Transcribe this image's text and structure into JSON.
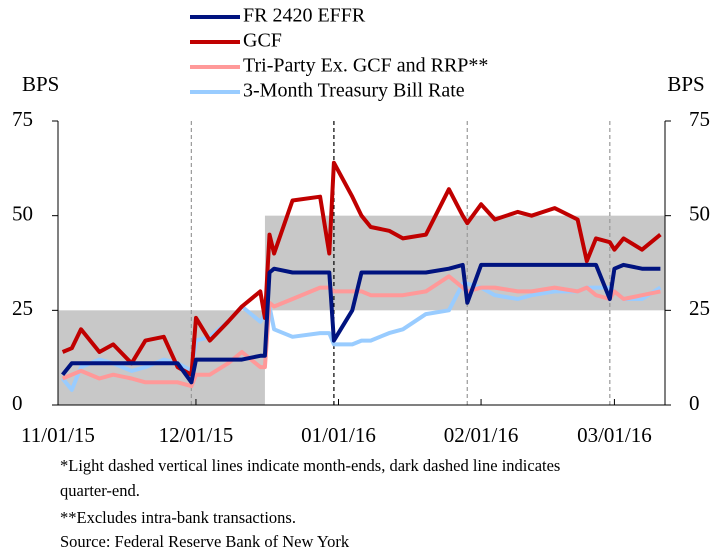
{
  "chart_data": {
    "type": "line",
    "y_axis_label": "BPS",
    "y2_axis_label": "BPS",
    "x": [
      "11/02/15",
      "11/04/15",
      "11/06/15",
      "11/10/15",
      "11/13/15",
      "11/17/15",
      "11/20/15",
      "11/24/15",
      "11/27/15",
      "11/30/15",
      "12/01/15",
      "12/04/15",
      "12/08/15",
      "12/11/15",
      "12/15/15",
      "12/16/15",
      "12/17/15",
      "12/18/15",
      "12/22/15",
      "12/28/15",
      "12/30/15",
      "12/31/15",
      "01/04/16",
      "01/06/16",
      "01/08/16",
      "01/12/16",
      "01/15/16",
      "01/20/16",
      "01/25/16",
      "01/28/16",
      "01/29/16",
      "02/01/16",
      "02/04/16",
      "02/09/16",
      "02/12/16",
      "02/17/16",
      "02/22/16",
      "02/24/16",
      "02/26/16",
      "02/29/16",
      "03/01/16",
      "03/03/16",
      "03/07/16",
      "03/11/16"
    ],
    "series": [
      {
        "name": "FR 2420 EFFR",
        "color": "#00137f",
        "values": [
          8,
          11,
          11,
          11,
          11,
          11,
          11,
          11,
          11,
          6,
          12,
          12,
          12,
          12,
          13,
          13,
          35,
          36,
          35,
          35,
          35,
          17,
          25,
          35,
          35,
          35,
          35,
          35,
          36,
          37,
          27,
          37,
          37,
          37,
          37,
          37,
          37,
          37,
          37,
          28,
          36,
          37,
          36,
          36
        ]
      },
      {
        "name": "GCF",
        "color": "#c00000",
        "values": [
          14,
          15,
          20,
          14,
          16,
          11,
          17,
          18,
          10,
          8,
          23,
          17,
          22,
          26,
          30,
          23,
          45,
          40,
          54,
          55,
          40,
          64,
          55,
          50,
          47,
          46,
          44,
          45,
          57,
          50,
          48,
          53,
          49,
          51,
          50,
          52,
          49,
          38,
          44,
          43,
          41,
          44,
          41,
          45
        ]
      },
      {
        "name": "Tri-Party Ex. GCF and RRP**",
        "color": "#ff9999",
        "values": [
          7,
          8,
          9,
          7,
          8,
          7,
          6,
          6,
          6,
          5,
          8,
          8,
          11,
          14,
          10,
          10,
          27,
          26,
          28,
          31,
          31,
          30,
          30,
          30,
          29,
          29,
          29,
          30,
          34,
          31,
          30,
          31,
          31,
          30,
          30,
          31,
          30,
          31,
          29,
          28,
          30,
          28,
          29,
          30
        ]
      },
      {
        "name": "3-Month Treasury Bill Rate",
        "color": "#99ccff",
        "values": [
          7,
          4,
          10,
          12,
          11,
          9,
          10,
          12,
          11,
          9,
          17,
          18,
          22,
          26,
          22,
          24,
          26,
          20,
          18,
          19,
          19,
          16,
          16,
          17,
          17,
          19,
          20,
          24,
          25,
          32,
          32,
          31,
          29,
          28,
          29,
          30,
          30,
          31,
          31,
          31,
          30,
          28,
          28,
          31
        ]
      }
    ],
    "target_range": [
      {
        "from": "11/01/15",
        "to": "12/16/15",
        "lower": 0,
        "upper": 25
      },
      {
        "from": "12/16/15",
        "to": "03/12/16",
        "lower": 25,
        "upper": 50
      }
    ],
    "month_ends": [
      "11/30/15",
      "01/29/16",
      "02/29/16"
    ],
    "quarter_end": "12/31/15",
    "xlim": [
      "11/01/15",
      "03/12/16"
    ],
    "xticks": [
      "11/01/15",
      "12/01/15",
      "01/01/16",
      "02/01/16",
      "03/01/16"
    ],
    "ylim": [
      0,
      75
    ],
    "yticks": [
      0,
      25,
      50,
      75
    ],
    "y2lim": [
      0,
      75
    ],
    "y2ticks": [
      0,
      25,
      50,
      75
    ],
    "notes": [
      "*Light dashed vertical lines indicate month-ends, dark dashed line indicates",
      "quarter-end.",
      "**Excludes intra-bank transactions.",
      "Source: Federal Reserve Bank of New York"
    ]
  }
}
